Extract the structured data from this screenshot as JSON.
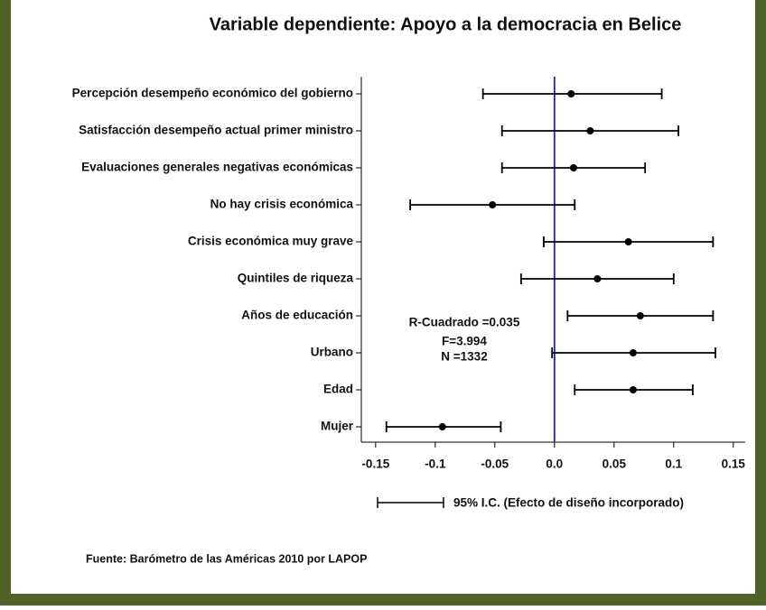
{
  "chart_data": {
    "type": "errorbar",
    "title": "Variable dependiente: Apoyo a la democracia en Belice",
    "categories": [
      "Percepción desempeño económico del gobierno",
      "Satisfacción desempeño actual primer ministro",
      "Evaluaciones generales negativas económicas",
      "No hay crisis económica",
      "Crisis económica muy grave",
      "Quintiles de riqueza",
      "Años de educación",
      "Urbano",
      "Edad",
      "Mujer"
    ],
    "values": [
      0.014,
      0.03,
      0.016,
      -0.052,
      0.062,
      0.036,
      0.072,
      0.066,
      0.066,
      -0.094
    ],
    "lower": [
      -0.06,
      -0.044,
      -0.044,
      -0.121,
      -0.009,
      -0.028,
      0.011,
      -0.002,
      0.017,
      -0.141
    ],
    "upper": [
      0.09,
      0.104,
      0.076,
      0.017,
      0.133,
      0.1,
      0.133,
      0.135,
      0.116,
      -0.045
    ],
    "color": "#000000",
    "reference_line": 0,
    "reference_color": "#1f1fbf",
    "xlim": [
      -0.162,
      0.16
    ],
    "xticks": [
      -0.15,
      -0.1,
      -0.05,
      {
        "value": 0,
        "label": "0.0"
      },
      0.05,
      0.1,
      0.15
    ],
    "annotations": [
      "R-Cuadrado =0.035",
      "F=3.994",
      "N =1332"
    ],
    "legend": "95% I.C. (Efecto de diseño incorporado)",
    "source": "Fuente: Barómetro de las Américas 2010 por LAPOP",
    "border_color": "#4f6228"
  }
}
